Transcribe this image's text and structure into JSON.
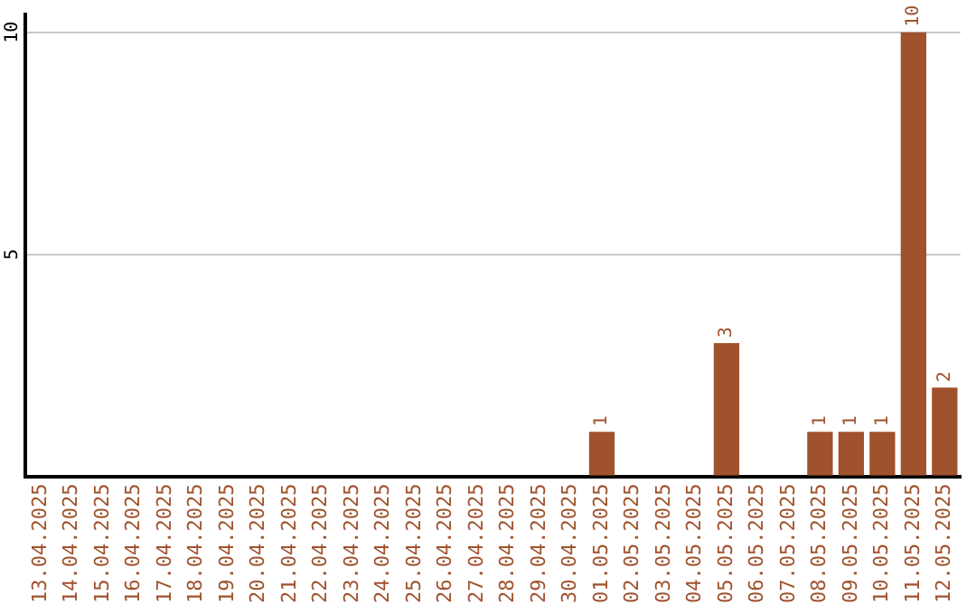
{
  "chart_data": {
    "type": "bar",
    "categories": [
      "13.04.2025",
      "14.04.2025",
      "15.04.2025",
      "16.04.2025",
      "17.04.2025",
      "18.04.2025",
      "19.04.2025",
      "20.04.2025",
      "21.04.2025",
      "22.04.2025",
      "23.04.2025",
      "24.04.2025",
      "25.04.2025",
      "26.04.2025",
      "27.04.2025",
      "28.04.2025",
      "29.04.2025",
      "30.04.2025",
      "01.05.2025",
      "02.05.2025",
      "03.05.2025",
      "04.05.2025",
      "05.05.2025",
      "06.05.2025",
      "07.05.2025",
      "08.05.2025",
      "09.05.2025",
      "10.05.2025",
      "11.05.2025",
      "12.05.2025"
    ],
    "values": [
      0,
      0,
      0,
      0,
      0,
      0,
      0,
      0,
      0,
      0,
      0,
      0,
      0,
      0,
      0,
      0,
      0,
      0,
      1,
      0,
      0,
      0,
      3,
      0,
      0,
      1,
      1,
      1,
      10,
      2
    ],
    "value_labels": [
      null,
      null,
      null,
      null,
      null,
      null,
      null,
      null,
      null,
      null,
      null,
      null,
      null,
      null,
      null,
      null,
      null,
      null,
      "1",
      null,
      null,
      null,
      "3",
      null,
      null,
      "1",
      "1",
      "1",
      "10",
      "2"
    ],
    "color": "#a0522d",
    "ylim": [
      0,
      10.4
    ],
    "yticks": [
      {
        "value": 0,
        "label": null
      },
      5,
      10
    ],
    "grid": "y",
    "legend": false
  }
}
